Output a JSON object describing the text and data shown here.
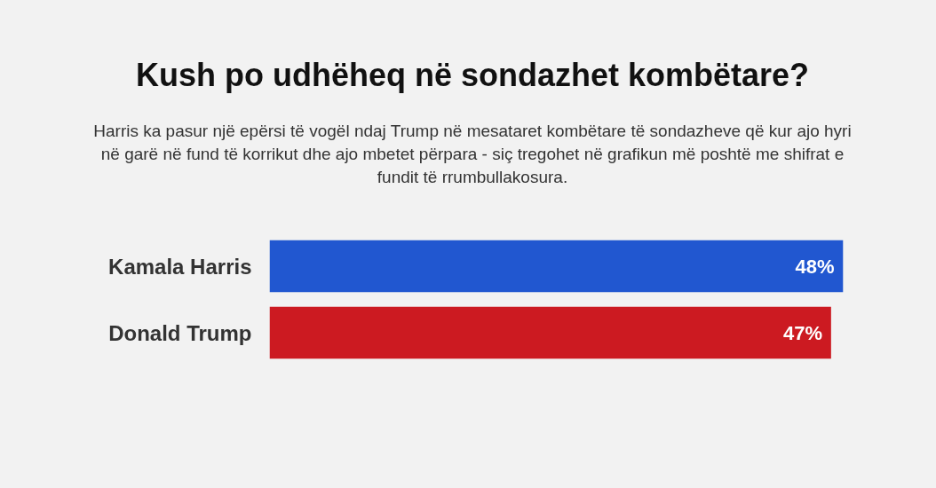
{
  "chart_data": {
    "type": "bar",
    "orientation": "horizontal",
    "title": "Kush po udhëheq në sondazhet kombëtare?",
    "subtitle": "Harris ka pasur një epërsi të vogël ndaj Trump në mesataret kombëtare të sondazheve që kur ajo hyri në garë në fund të korrikut dhe ajo mbetet përpara - siç tregohet në grafikun më poshtë me shifrat e fundit të rrumbullakosura.",
    "categories": [
      "Kamala Harris",
      "Donald Trump"
    ],
    "values": [
      48,
      47
    ],
    "colors": [
      "#2157d0",
      "#cc1a21"
    ],
    "value_labels": [
      "48%",
      "47%"
    ]
  }
}
